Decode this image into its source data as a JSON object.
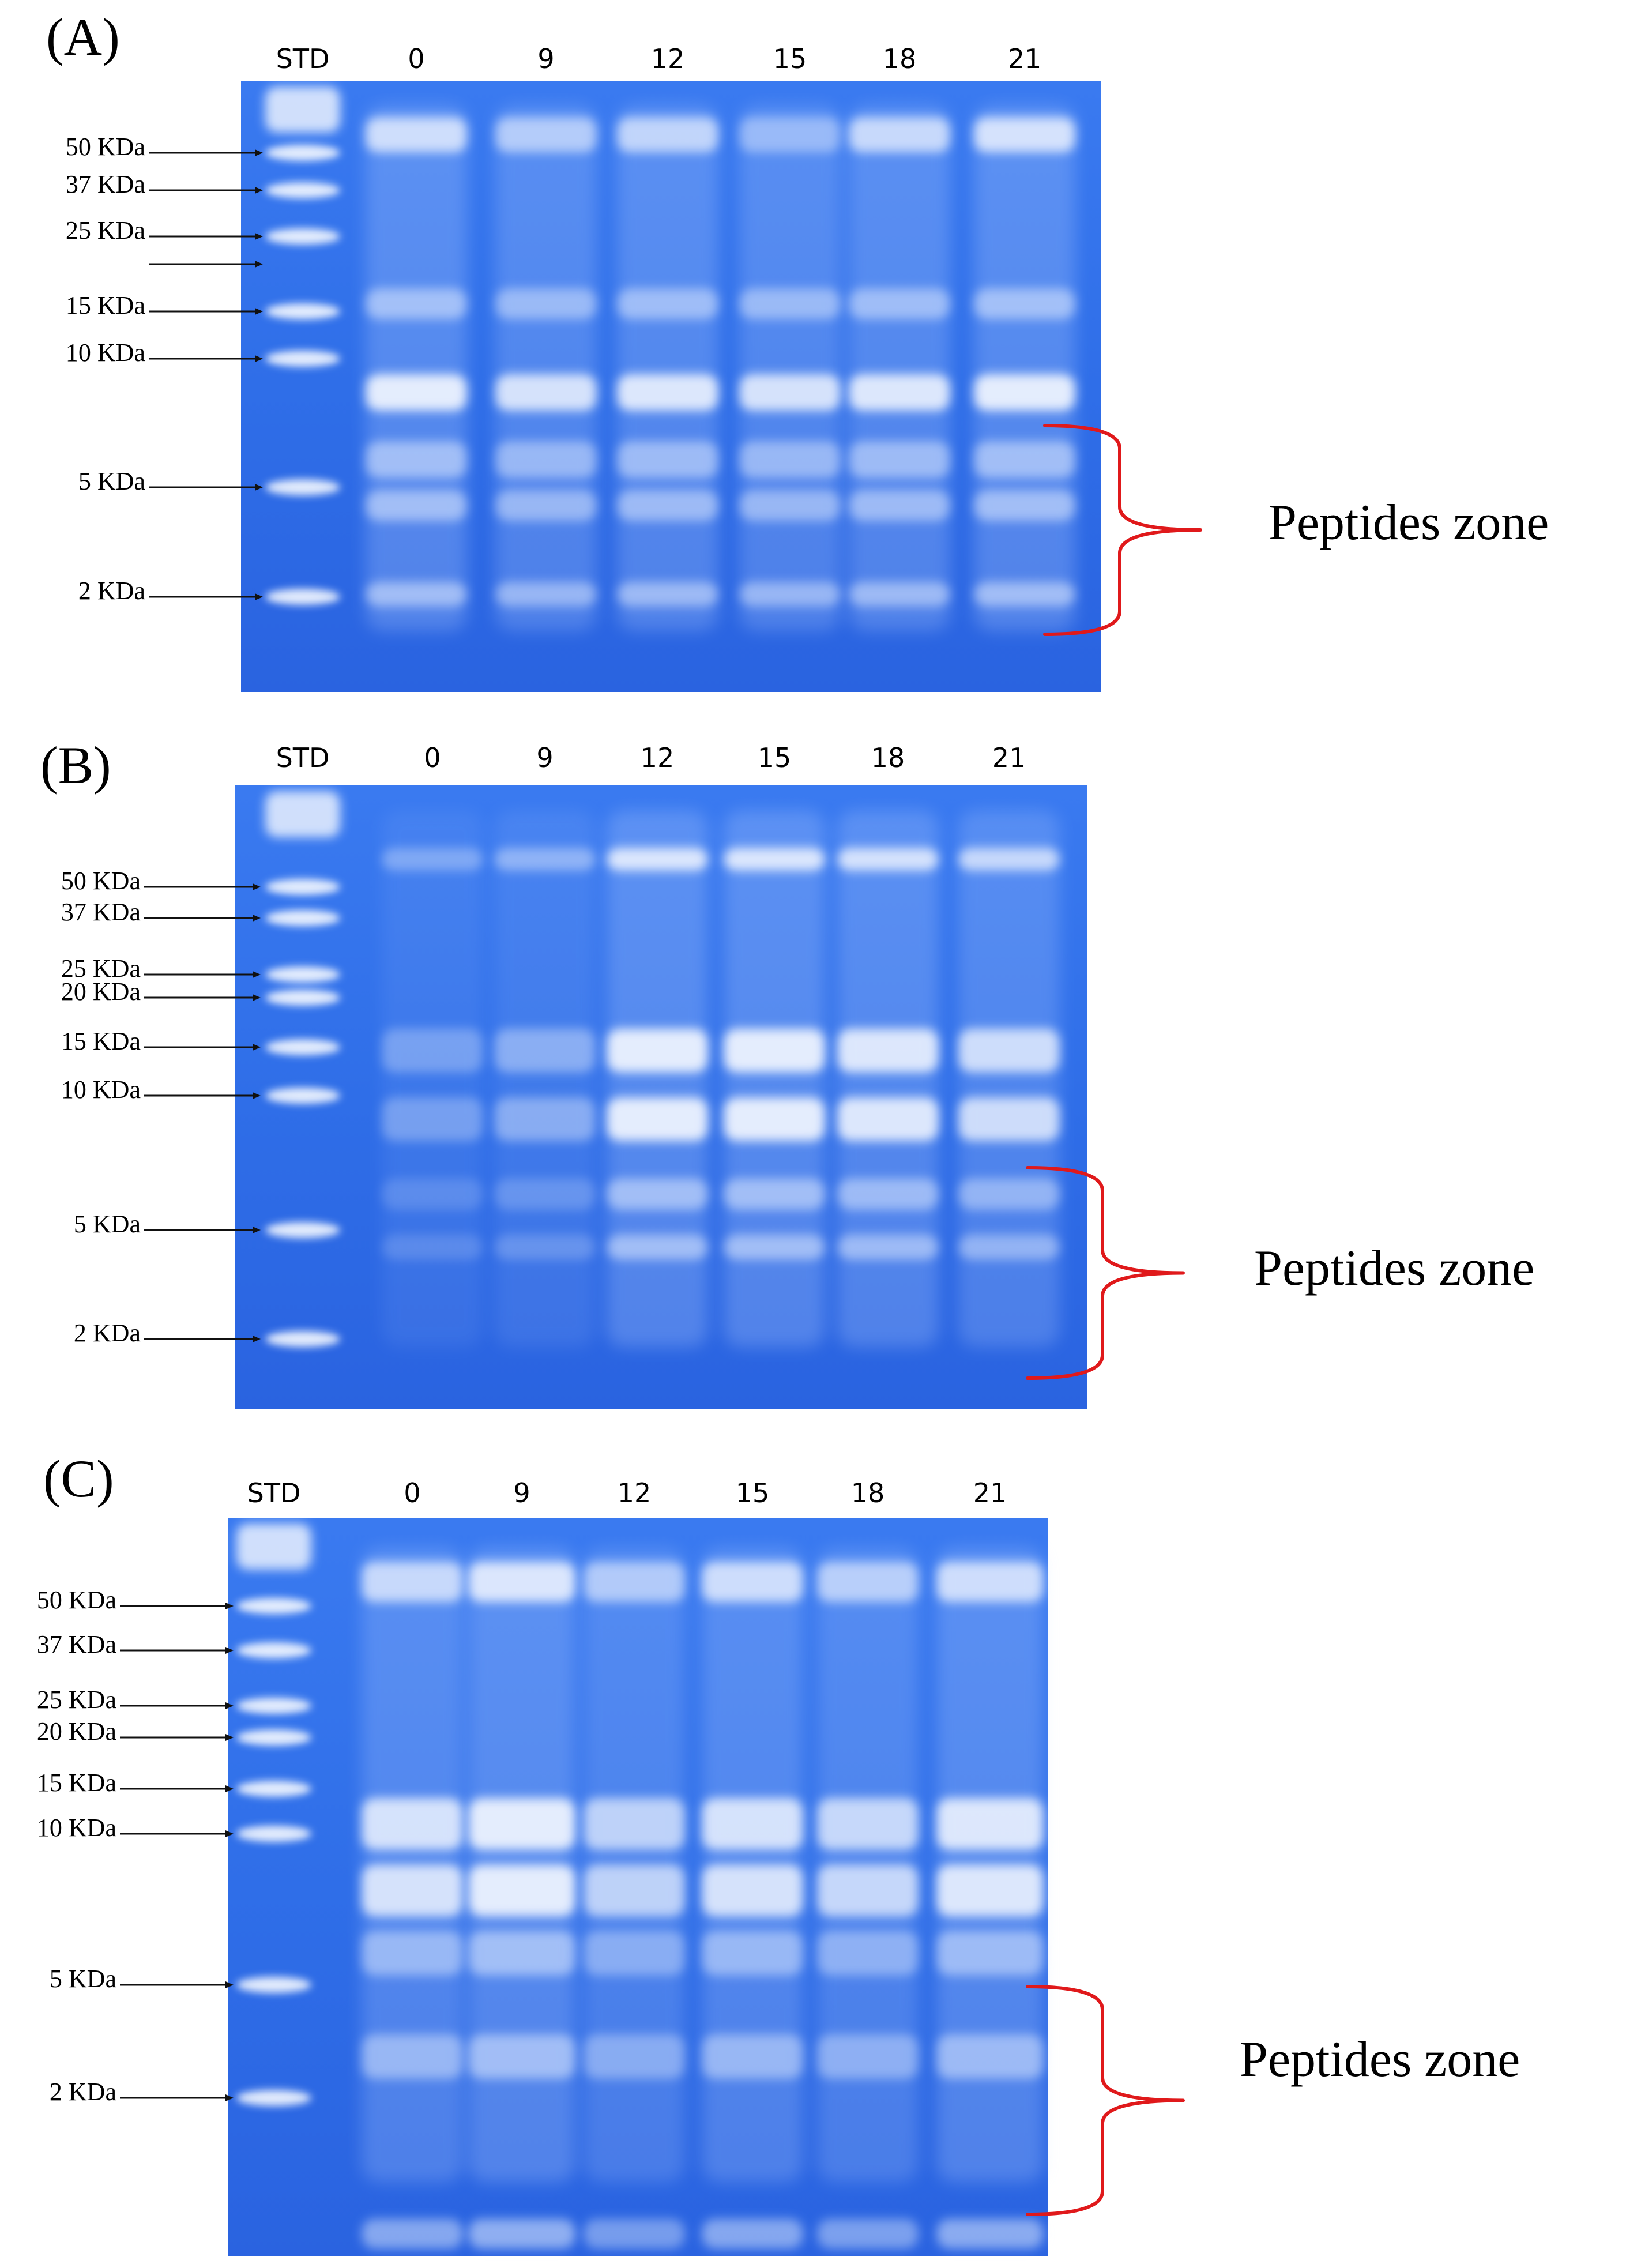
{
  "colors": {
    "gel_base": "#2f6ee8",
    "gel_dark": "#1f56d8",
    "band_light": "#eef4ff",
    "brace": "#e0191b"
  },
  "panels": [
    {
      "id": "A",
      "label": "(A)",
      "lanes": [
        "STD",
        "0",
        "9",
        "12",
        "15",
        "18",
        "21"
      ],
      "markers": [
        "50 KDa",
        "37 KDa",
        "25 KDa",
        "",
        "15 KDa",
        "10 KDa",
        "5 KDa",
        "2 KDa"
      ],
      "zone_label": "Peptides zone"
    },
    {
      "id": "B",
      "label": "(B)",
      "lanes": [
        "STD",
        "0",
        "9",
        "12",
        "15",
        "18",
        "21"
      ],
      "markers": [
        "50 KDa",
        "37 KDa",
        "25 KDa",
        "20 KDa",
        "15 KDa",
        "10 KDa",
        "5 KDa",
        "2 KDa"
      ],
      "zone_label": "Peptides zone"
    },
    {
      "id": "C",
      "label": "(C)",
      "lanes": [
        "STD",
        "0",
        "9",
        "12",
        "15",
        "18",
        "21"
      ],
      "markers": [
        "50 KDa",
        "37 KDa",
        "25 KDa",
        "20 KDa",
        "15 KDa",
        "10 KDa",
        "5 KDa",
        "2 KDa"
      ],
      "zone_label": "Peptides zone"
    }
  ]
}
